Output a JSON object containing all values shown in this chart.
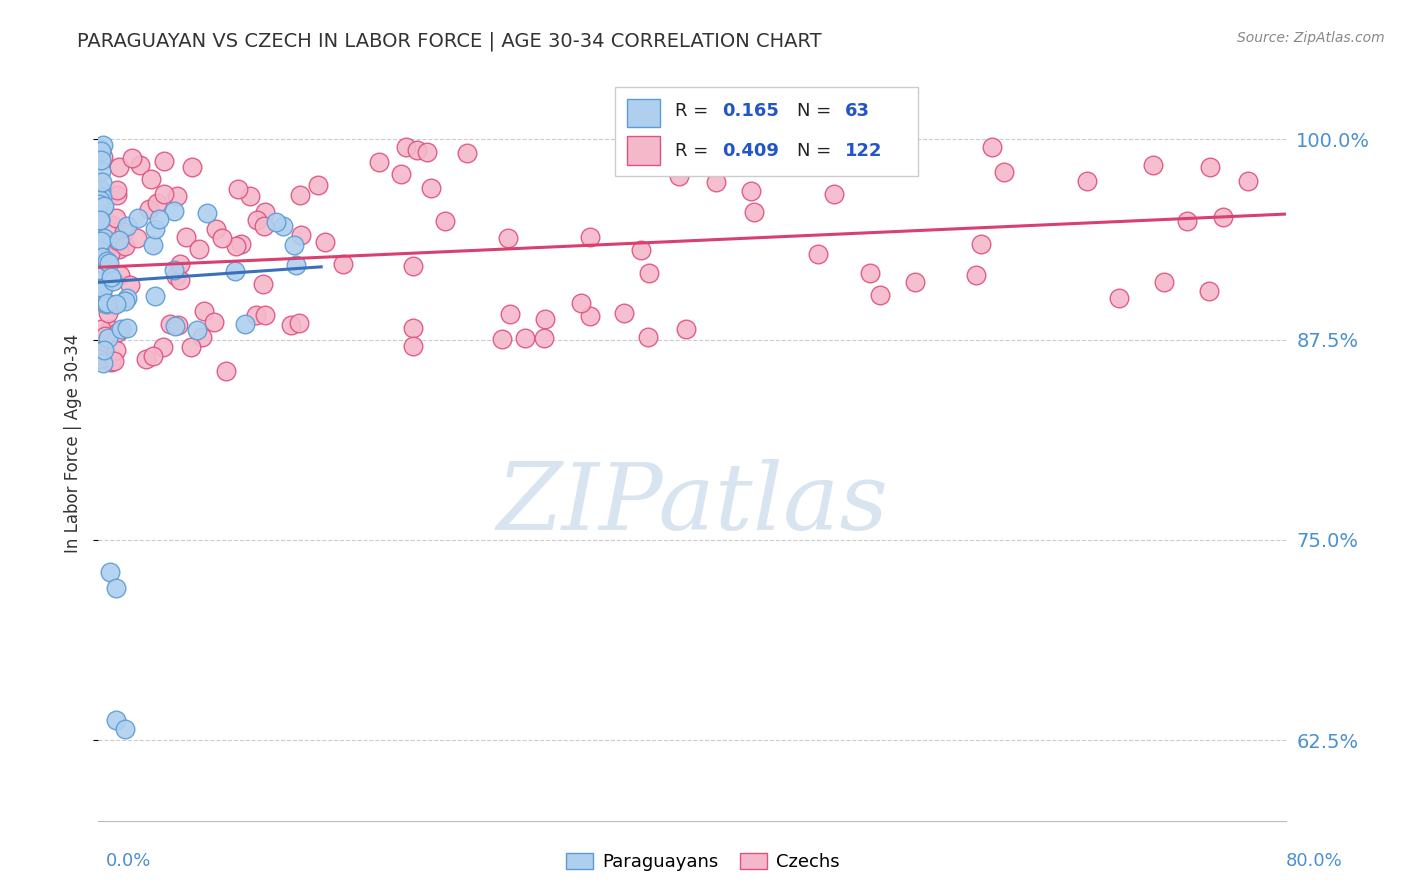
{
  "title": "PARAGUAYAN VS CZECH IN LABOR FORCE | AGE 30-34 CORRELATION CHART",
  "source_text": "Source: ZipAtlas.com",
  "ylabel": "In Labor Force | Age 30-34",
  "ytick_labels": [
    "62.5%",
    "75.0%",
    "87.5%",
    "100.0%"
  ],
  "ytick_values": [
    0.625,
    0.75,
    0.875,
    1.0
  ],
  "xlim": [
    0.0,
    0.8
  ],
  "ylim": [
    0.575,
    1.045
  ],
  "blue_R": 0.165,
  "blue_N": 63,
  "pink_R": 0.409,
  "pink_N": 122,
  "blue_color": "#aed0ee",
  "blue_edge_color": "#5b9bd5",
  "pink_color": "#f4b8cb",
  "pink_edge_color": "#e05080",
  "blue_line_color": "#3a6fba",
  "pink_line_color": "#d94070",
  "legend_label_blue": "Paraguayans",
  "legend_label_pink": "Czechs",
  "watermark": "ZIPatlas",
  "watermark_color": "#c8daea",
  "title_color": "#333333",
  "source_color": "#888888",
  "axis_label_color": "#4a90d0",
  "R_N_label_color": "#2255cc"
}
